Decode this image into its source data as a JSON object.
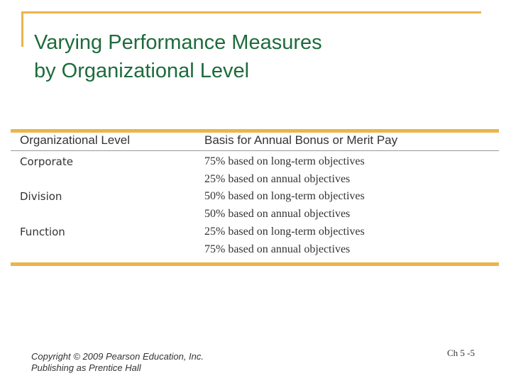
{
  "slide": {
    "title": [
      "Varying Performance Measures",
      "by Organizational Level"
    ],
    "table": {
      "header": [
        "Organizational Level",
        "Basis for Annual Bonus or Merit Pay"
      ],
      "rows": [
        {
          "level": "Corporate",
          "basis": [
            "75% based on long-term objectives",
            "25% based on annual objectives"
          ]
        },
        {
          "level": "Division",
          "basis": [
            "50% based on long-term objectives",
            "50% based on annual objectives"
          ]
        },
        {
          "level": "Function",
          "basis": [
            "25% based on long-term objectives",
            "75% based on annual objectives"
          ]
        }
      ]
    },
    "footer": {
      "copyright": [
        "Copyright © 2009 Pearson Education, Inc.",
        "Publishing as Prentice Hall"
      ],
      "page": "Ch 5 -5"
    }
  }
}
